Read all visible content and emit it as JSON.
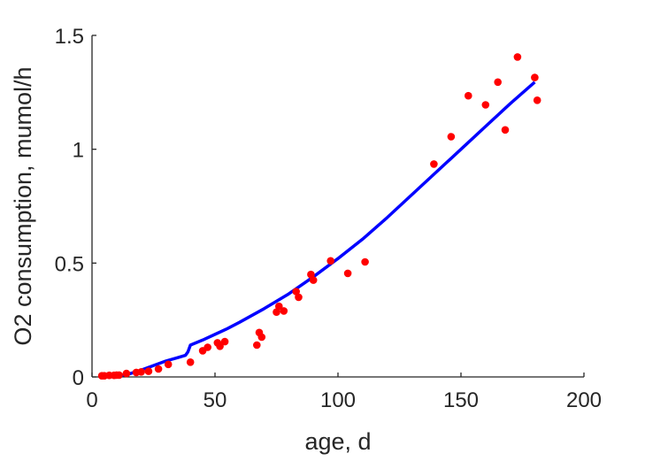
{
  "chart_data": {
    "type": "scatter",
    "title": "",
    "xlabel": "age, d",
    "ylabel": "O2 consumption, mumol/h",
    "xlim": [
      0,
      200
    ],
    "ylim": [
      0,
      1.5
    ],
    "xticks": [
      0,
      50,
      100,
      150,
      200
    ],
    "xtick_labels": [
      "0",
      "50",
      "100",
      "150",
      "200"
    ],
    "yticks": [
      0,
      0.5,
      1,
      1.5
    ],
    "ytick_labels": [
      "0",
      "0.5",
      "1",
      "1.5"
    ],
    "grid": false,
    "legend": "none",
    "series": [
      {
        "kind": "scatter",
        "color": "#ff0000",
        "points": [
          [
            4,
            0.005
          ],
          [
            5,
            0.005
          ],
          [
            7,
            0.007
          ],
          [
            9,
            0.007
          ],
          [
            10,
            0.008
          ],
          [
            11,
            0.008
          ],
          [
            14,
            0.015
          ],
          [
            18,
            0.02
          ],
          [
            20,
            0.022
          ],
          [
            23,
            0.025
          ],
          [
            27,
            0.035
          ],
          [
            31,
            0.055
          ],
          [
            40,
            0.065
          ],
          [
            45,
            0.115
          ],
          [
            47,
            0.13
          ],
          [
            51,
            0.15
          ],
          [
            52,
            0.135
          ],
          [
            54,
            0.155
          ],
          [
            67,
            0.14
          ],
          [
            68,
            0.195
          ],
          [
            69,
            0.175
          ],
          [
            75,
            0.285
          ],
          [
            76,
            0.31
          ],
          [
            78,
            0.29
          ],
          [
            83,
            0.375
          ],
          [
            84,
            0.35
          ],
          [
            89,
            0.45
          ],
          [
            90,
            0.425
          ],
          [
            97,
            0.51
          ],
          [
            104,
            0.455
          ],
          [
            111,
            0.505
          ],
          [
            139,
            0.935
          ],
          [
            146,
            1.055
          ],
          [
            153,
            1.235
          ],
          [
            160,
            1.195
          ],
          [
            165,
            1.295
          ],
          [
            168,
            1.085
          ],
          [
            173,
            1.405
          ],
          [
            180,
            1.315
          ],
          [
            181,
            1.215
          ]
        ]
      },
      {
        "kind": "line",
        "color": "#0000ff",
        "points": [
          [
            8,
            0.0
          ],
          [
            15,
            0.013
          ],
          [
            20,
            0.03
          ],
          [
            25,
            0.05
          ],
          [
            30,
            0.07
          ],
          [
            35,
            0.085
          ],
          [
            38,
            0.095
          ],
          [
            39,
            0.11
          ],
          [
            40,
            0.14
          ],
          [
            45,
            0.162
          ],
          [
            50,
            0.187
          ],
          [
            55,
            0.212
          ],
          [
            60,
            0.24
          ],
          [
            70,
            0.3
          ],
          [
            80,
            0.365
          ],
          [
            90,
            0.44
          ],
          [
            100,
            0.52
          ],
          [
            110,
            0.605
          ],
          [
            120,
            0.7
          ],
          [
            130,
            0.8
          ],
          [
            140,
            0.9
          ],
          [
            150,
            1.0
          ],
          [
            160,
            1.1
          ],
          [
            170,
            1.2
          ],
          [
            180,
            1.295
          ]
        ]
      }
    ]
  }
}
